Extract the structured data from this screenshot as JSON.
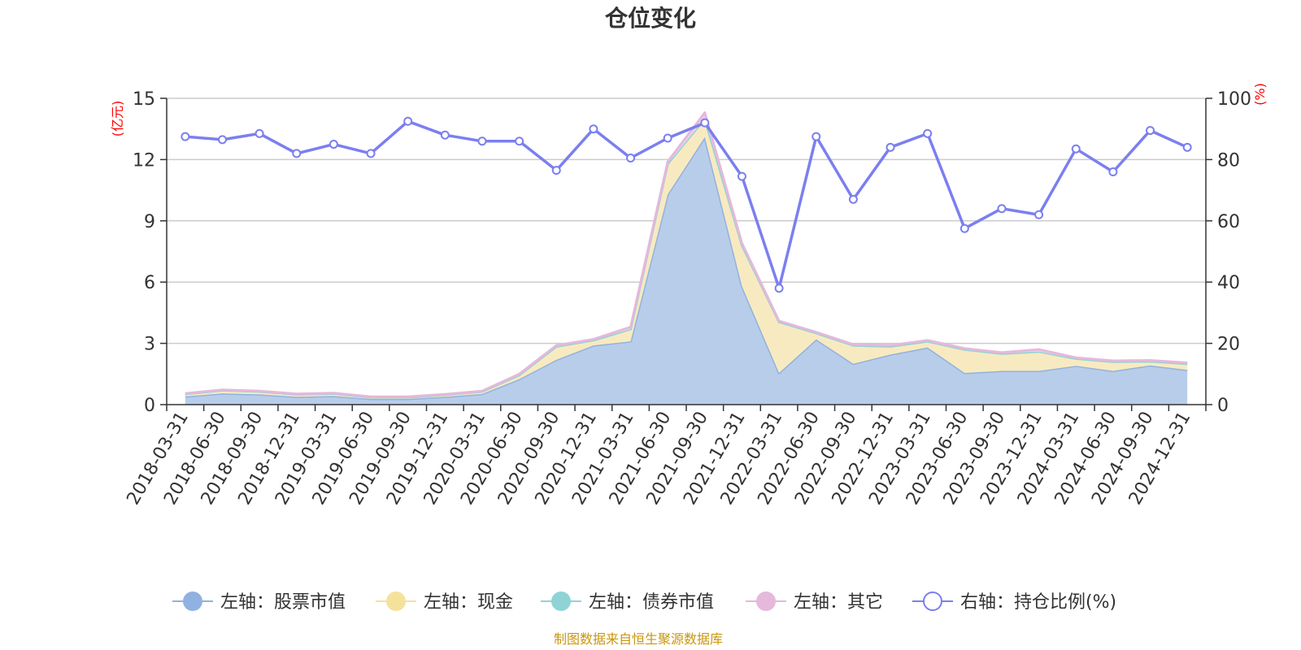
{
  "chart_data": {
    "type": "area",
    "title": "仓位变化",
    "left_unit": "(亿元)",
    "right_unit": "(%)",
    "y_left_lim": [
      0,
      15
    ],
    "y_left_ticks": [
      "0",
      "3",
      "6",
      "9",
      "12",
      "15"
    ],
    "y_right_lim": [
      0,
      100
    ],
    "y_right_ticks": [
      "0",
      "20",
      "40",
      "60",
      "80",
      "100"
    ],
    "categories": [
      "2018-03-31",
      "2018-06-30",
      "2018-09-30",
      "2018-12-31",
      "2019-03-31",
      "2019-06-30",
      "2019-09-30",
      "2019-12-31",
      "2020-03-31",
      "2020-06-30",
      "2020-09-30",
      "2020-12-31",
      "2021-03-31",
      "2021-06-30",
      "2021-09-30",
      "2021-12-31",
      "2022-03-31",
      "2022-06-30",
      "2022-09-30",
      "2022-12-31",
      "2023-03-31",
      "2023-06-30",
      "2023-09-30",
      "2023-12-31",
      "2024-03-31",
      "2024-06-30",
      "2024-09-30",
      "2024-12-31"
    ],
    "series": [
      {
        "name": "左轴：股票市值",
        "axis": "left",
        "color": "#91b2e0",
        "fill": "#b8cdea",
        "values": [
          0.4,
          0.55,
          0.5,
          0.38,
          0.42,
          0.28,
          0.28,
          0.38,
          0.52,
          1.25,
          2.2,
          2.9,
          3.1,
          10.3,
          13.1,
          5.8,
          1.55,
          3.2,
          2.0,
          2.45,
          2.8,
          1.55,
          1.65,
          1.65,
          1.9,
          1.65,
          1.92,
          1.7
        ]
      },
      {
        "name": "左轴：现金",
        "axis": "left",
        "color": "#f5e29a",
        "fill": "#f8eac0",
        "values": [
          0.12,
          0.15,
          0.14,
          0.12,
          0.12,
          0.08,
          0.08,
          0.1,
          0.12,
          0.2,
          0.65,
          0.25,
          0.6,
          1.5,
          0.9,
          2.0,
          2.5,
          0.3,
          0.9,
          0.4,
          0.3,
          1.15,
          0.85,
          0.95,
          0.35,
          0.45,
          0.2,
          0.3
        ]
      },
      {
        "name": "左轴：债券市值",
        "axis": "left",
        "color": "#8fd3d6",
        "fill": "#b8e4e6",
        "values": [
          0,
          0,
          0,
          0,
          0,
          0,
          0,
          0,
          0,
          0,
          0,
          0,
          0,
          0,
          0,
          0,
          0,
          0,
          0,
          0,
          0,
          0,
          0,
          0,
          0,
          0,
          0,
          0
        ]
      },
      {
        "name": "左轴：其它",
        "axis": "left",
        "color": "#e5b8dc",
        "fill": "#edd3e8",
        "values": [
          0.03,
          0.03,
          0.03,
          0.03,
          0.03,
          0.03,
          0.03,
          0.03,
          0.03,
          0.05,
          0.05,
          0.05,
          0.1,
          0.1,
          0.3,
          0.1,
          0.05,
          0.05,
          0.05,
          0.05,
          0.05,
          0.05,
          0.05,
          0.1,
          0.05,
          0.05,
          0.05,
          0.05
        ]
      },
      {
        "name": "右轴：持仓比例(%)",
        "axis": "right",
        "color": "#7b7ff0",
        "values": [
          87.5,
          86.5,
          88.5,
          82.0,
          85.0,
          82.0,
          92.5,
          88.0,
          86.0,
          86.0,
          76.5,
          90.0,
          80.5,
          87.0,
          92.0,
          74.5,
          38.0,
          87.5,
          67.0,
          84.0,
          88.5,
          57.5,
          64.0,
          62.0,
          83.5,
          76.0,
          89.5,
          84.0
        ]
      }
    ],
    "legend_position": "bottom",
    "source": "制图数据来自恒生聚源数据库"
  }
}
